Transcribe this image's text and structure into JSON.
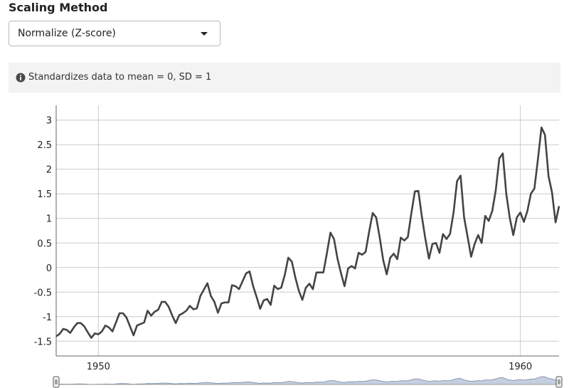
{
  "scaling": {
    "title": "Scaling Method",
    "selected": "Normalize (Z-score)",
    "info_text": "Standardizes data to mean = 0, SD = 1"
  },
  "icons": {
    "dropdown": "caret-down-icon",
    "info": "info-circle-icon"
  },
  "colors": {
    "line": "#444444",
    "grid": "#cccccc",
    "info_bg": "#f3f3f3",
    "navigator_fill": "#c5cfe0",
    "navigator_line": "#8a99b5"
  },
  "chart_data": {
    "type": "line",
    "x_start": "1949-01",
    "x_end": "1960-12",
    "x_frequency": "monthly",
    "x_ticks": [
      "1950",
      "1960"
    ],
    "y_ticks": [
      3,
      2.5,
      2,
      1.5,
      1,
      0.5,
      0,
      -0.5,
      -1,
      -1.5
    ],
    "ylim": [
      -1.8,
      3.3
    ],
    "grid": true,
    "series": [
      {
        "values": [
          -1.4,
          -1.35,
          -1.25,
          -1.27,
          -1.33,
          -1.22,
          -1.13,
          -1.13,
          -1.2,
          -1.32,
          -1.43,
          -1.34,
          -1.36,
          -1.3,
          -1.18,
          -1.22,
          -1.3,
          -1.12,
          -0.93,
          -0.93,
          -1.02,
          -1.2,
          -1.38,
          -1.18,
          -1.15,
          -1.12,
          -0.88,
          -0.98,
          -0.9,
          -0.86,
          -0.7,
          -0.7,
          -0.8,
          -0.98,
          -1.13,
          -0.97,
          -0.93,
          -0.88,
          -0.78,
          -0.85,
          -0.83,
          -0.58,
          -0.45,
          -0.32,
          -0.58,
          -0.7,
          -0.92,
          -0.73,
          -0.71,
          -0.71,
          -0.36,
          -0.38,
          -0.44,
          -0.28,
          -0.12,
          -0.08,
          -0.38,
          -0.6,
          -0.84,
          -0.67,
          -0.64,
          -0.76,
          -0.37,
          -0.44,
          -0.41,
          -0.15,
          0.2,
          0.12,
          -0.2,
          -0.47,
          -0.66,
          -0.41,
          -0.33,
          -0.44,
          -0.1,
          -0.1,
          -0.1,
          0.3,
          0.71,
          0.58,
          0.18,
          -0.12,
          -0.38,
          -0.02,
          0.03,
          -0.02,
          0.3,
          0.26,
          0.32,
          0.73,
          1.11,
          1.02,
          0.61,
          0.15,
          -0.14,
          0.2,
          0.28,
          0.17,
          0.61,
          0.55,
          0.62,
          1.1,
          1.55,
          1.56,
          1.03,
          0.58,
          0.18,
          0.48,
          0.5,
          0.3,
          0.68,
          0.58,
          0.68,
          1.12,
          1.76,
          1.87,
          1.02,
          0.62,
          0.22,
          0.48,
          0.66,
          0.5,
          1.05,
          0.95,
          1.15,
          1.57,
          2.22,
          2.32,
          1.5,
          1.0,
          0.66,
          1.02,
          1.12,
          0.93,
          1.15,
          1.5,
          1.61,
          2.2,
          2.85,
          2.7,
          1.86,
          1.53,
          0.92,
          1.25
        ]
      }
    ]
  }
}
